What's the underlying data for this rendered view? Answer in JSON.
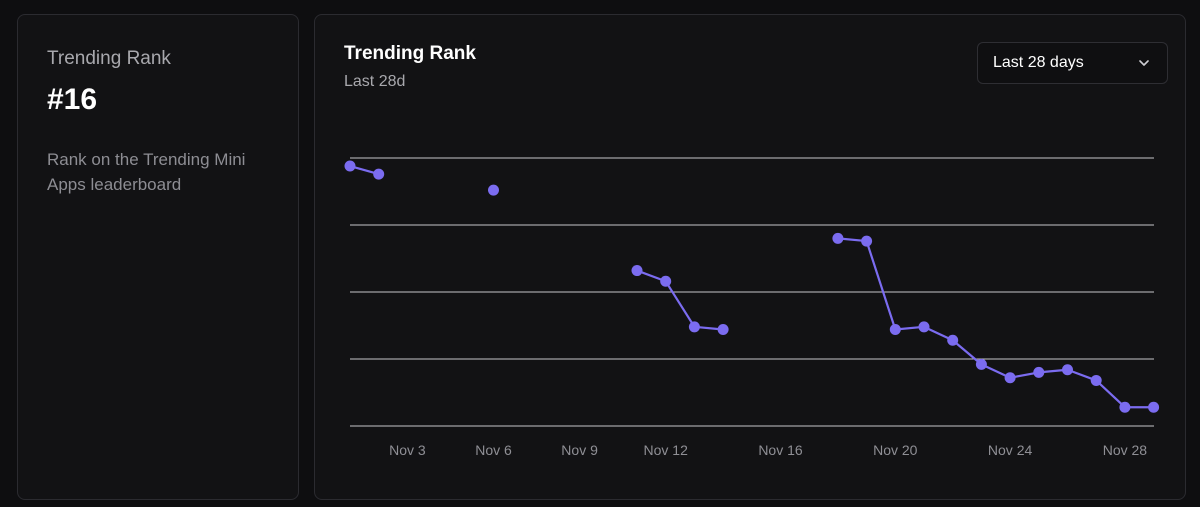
{
  "stat": {
    "label": "Trending Rank",
    "value": "#16",
    "description": "Rank on the Trending Mini Apps leaderboard"
  },
  "chart": {
    "title": "Trending Rank",
    "subtitle": "Last 28d",
    "range_select": {
      "selected": "Last 28 days",
      "icon": "chevron-down-icon"
    }
  },
  "colors": {
    "accent": "#7b6cf0",
    "grid": "#e8e8ea",
    "axis_text": "#8f8f95"
  },
  "chart_data": {
    "type": "line",
    "title": "Trending Rank",
    "subtitle": "Last 28d",
    "xlabel": "",
    "ylabel": "",
    "y_gridlines": 5,
    "x_domain": [
      1,
      28
    ],
    "y_domain": [
      0,
      100
    ],
    "x_ticks": [
      {
        "day": 3,
        "label": "Nov 3"
      },
      {
        "day": 6,
        "label": "Nov 6"
      },
      {
        "day": 9,
        "label": "Nov 9"
      },
      {
        "day": 12,
        "label": "Nov 12"
      },
      {
        "day": 16,
        "label": "Nov 16"
      },
      {
        "day": 20,
        "label": "Nov 20"
      },
      {
        "day": 24,
        "label": "Nov 24"
      },
      {
        "day": 28,
        "label": "Nov 28"
      }
    ],
    "series": [
      {
        "name": "Trending Rank",
        "segments": [
          [
            {
              "day": 1,
              "value": 97
            },
            {
              "day": 2,
              "value": 94
            }
          ],
          [
            {
              "day": 6,
              "value": 88
            }
          ],
          [
            {
              "day": 11,
              "value": 58
            },
            {
              "day": 12,
              "value": 54
            },
            {
              "day": 13,
              "value": 37
            },
            {
              "day": 14,
              "value": 36
            }
          ],
          [
            {
              "day": 18,
              "value": 70
            },
            {
              "day": 19,
              "value": 69
            },
            {
              "day": 20,
              "value": 36
            },
            {
              "day": 21,
              "value": 37
            },
            {
              "day": 22,
              "value": 32
            },
            {
              "day": 23,
              "value": 23
            },
            {
              "day": 24,
              "value": 18
            },
            {
              "day": 25,
              "value": 20
            },
            {
              "day": 26,
              "value": 21
            },
            {
              "day": 27,
              "value": 17
            },
            {
              "day": 28,
              "value": 7
            },
            {
              "day": 29,
              "value": 7
            }
          ]
        ]
      }
    ]
  }
}
